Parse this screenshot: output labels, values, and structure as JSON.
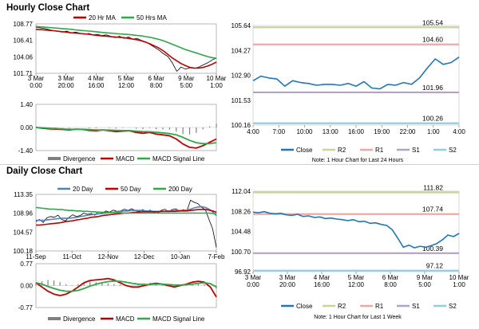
{
  "sections": {
    "hourly": "Hourly Close Chart",
    "daily": "Daily Close Chart"
  },
  "colors": {
    "price": "#000000",
    "ma_short": "#c00000",
    "ma_long": "#2ea84a",
    "ma20_daily": "#4f81bd",
    "close": "#1f78b4",
    "r2": "#c3d69b",
    "r1": "#f2a7a7",
    "s1": "#b3a2c7",
    "s2": "#93cddd",
    "macd": "#c00000",
    "signal": "#2ea84a",
    "divergence": "#7f7f7f"
  },
  "chart_data": [
    {
      "id": "hourly_price",
      "type": "line",
      "legend": [
        "20 Hr MA",
        "50 Hrs MA"
      ],
      "yticks": [
        "108.77",
        "106.41",
        "104.06",
        "101.71"
      ],
      "ylim": [
        101.71,
        108.77
      ],
      "xticks": [
        [
          "3 Mar",
          "0:00"
        ],
        [
          "3 Mar",
          "20:00"
        ],
        [
          "4 Mar",
          "16:00"
        ],
        [
          "5 Mar",
          "12:00"
        ],
        [
          "6 Mar",
          "8:00"
        ],
        [
          "9 Mar",
          "5:00"
        ],
        [
          "10 Mar",
          "1:00"
        ]
      ],
      "series": [
        {
          "name": "Price",
          "color_key": "price",
          "values": [
            108.3,
            108.2,
            108.1,
            107.95,
            107.8,
            107.7,
            107.6,
            107.75,
            107.5,
            107.6,
            107.45,
            107.3,
            107.4,
            107.2,
            107.25,
            107.1,
            107.2,
            107.0,
            106.8,
            107.0,
            106.7,
            106.9,
            106.6,
            106.7,
            106.4,
            106.2,
            105.8,
            105.4,
            105.0,
            104.5,
            104.1,
            103.2,
            102.0,
            102.6,
            102.3,
            102.5,
            102.4,
            102.6,
            102.9,
            103.2,
            103.6,
            103.9
          ]
        },
        {
          "name": "20 Hr MA",
          "color_key": "ma_short",
          "values": [
            108.0,
            107.95,
            107.9,
            107.85,
            107.8,
            107.72,
            107.65,
            107.6,
            107.5,
            107.45,
            107.4,
            107.35,
            107.3,
            107.2,
            107.12,
            107.05,
            107.0,
            106.95,
            106.9,
            106.85,
            106.8,
            106.7,
            106.6,
            106.5,
            106.35,
            106.15,
            105.9,
            105.6,
            105.3,
            104.9,
            104.4,
            103.9,
            103.5,
            103.1,
            102.8,
            102.55,
            102.45,
            102.45,
            102.55,
            102.75,
            103.0,
            103.3
          ]
        },
        {
          "name": "50 Hrs MA",
          "color_key": "ma_long",
          "values": [
            108.4,
            108.35,
            108.3,
            108.25,
            108.2,
            108.15,
            108.1,
            108.05,
            108.0,
            107.92,
            107.85,
            107.8,
            107.75,
            107.7,
            107.62,
            107.55,
            107.5,
            107.45,
            107.4,
            107.35,
            107.3,
            107.25,
            107.2,
            107.12,
            107.05,
            106.95,
            106.85,
            106.7,
            106.55,
            106.35,
            106.1,
            105.85,
            105.6,
            105.35,
            105.1,
            104.9,
            104.7,
            104.5,
            104.3,
            104.1,
            103.95,
            103.85
          ]
        }
      ]
    },
    {
      "id": "hourly_macd",
      "type": "line",
      "yticks": [
        "1.40",
        "0.00",
        "-1.40"
      ],
      "ylim": [
        -1.4,
        1.4
      ],
      "legend": [
        "Divergence",
        "MACD",
        "MACD Signal Line"
      ],
      "series": [
        {
          "name": "MACD",
          "color_key": "macd",
          "values": [
            0.0,
            -0.05,
            -0.08,
            -0.1,
            -0.12,
            -0.15,
            -0.1,
            -0.12,
            -0.18,
            -0.2,
            -0.15,
            -0.2,
            -0.25,
            -0.22,
            -0.2,
            -0.3,
            -0.35,
            -0.3,
            -0.4,
            -0.45,
            -0.5,
            -0.7,
            -1.0,
            -1.2,
            -1.25,
            -1.1,
            -0.9,
            -0.7
          ]
        },
        {
          "name": "MACD Signal Line",
          "color_key": "signal",
          "values": [
            0.0,
            -0.02,
            -0.05,
            -0.07,
            -0.09,
            -0.11,
            -0.11,
            -0.11,
            -0.13,
            -0.15,
            -0.15,
            -0.16,
            -0.18,
            -0.19,
            -0.19,
            -0.22,
            -0.25,
            -0.26,
            -0.29,
            -0.33,
            -0.37,
            -0.45,
            -0.6,
            -0.78,
            -0.92,
            -0.98,
            -0.97,
            -0.92
          ]
        },
        {
          "name": "Divergence",
          "color_key": "divergence",
          "values": [
            0.0,
            -0.03,
            -0.03,
            -0.03,
            -0.03,
            -0.04,
            0.01,
            -0.01,
            -0.05,
            -0.05,
            0.0,
            -0.04,
            -0.07,
            -0.03,
            -0.01,
            -0.08,
            -0.1,
            -0.04,
            -0.11,
            -0.12,
            -0.13,
            -0.25,
            -0.4,
            -0.42,
            -0.33,
            -0.12,
            0.07,
            0.22
          ]
        }
      ]
    },
    {
      "id": "hourly_pivot",
      "type": "line",
      "yticks": [
        "105.64",
        "104.27",
        "102.90",
        "101.53",
        "100.16"
      ],
      "ylim": [
        100.16,
        105.64
      ],
      "xticks": [
        "4:00",
        "7:00",
        "10:00",
        "13:00",
        "16:00",
        "19:00",
        "22:00",
        "1:00",
        "4:00"
      ],
      "levels": [
        {
          "name": "R2",
          "value": 105.54,
          "label": "105.54",
          "color_key": "r2"
        },
        {
          "name": "R1",
          "value": 104.6,
          "label": "104.60",
          "color_key": "r1"
        },
        {
          "name": "S1",
          "value": 101.96,
          "label": "101.96",
          "color_key": "s1"
        },
        {
          "name": "S2",
          "value": 100.26,
          "label": "100.26",
          "color_key": "s2"
        }
      ],
      "series": [
        {
          "name": "Close",
          "color_key": "close",
          "values": [
            102.6,
            102.85,
            102.75,
            102.7,
            102.3,
            102.6,
            102.5,
            102.45,
            102.35,
            102.4,
            102.4,
            102.35,
            102.45,
            102.3,
            102.55,
            102.2,
            102.15,
            102.4,
            102.35,
            102.5,
            102.4,
            102.75,
            103.3,
            103.8,
            103.5,
            103.6,
            103.9
          ]
        }
      ],
      "legend": [
        "Close",
        "R2",
        "R1",
        "S1",
        "S2"
      ],
      "note": "Note: 1 Hour Chart for Last 24 Hours"
    },
    {
      "id": "daily_price",
      "type": "line",
      "legend": [
        "20 Day",
        "50 Day",
        "200 Day"
      ],
      "yticks": [
        "113.35",
        "108.96",
        "104.57",
        "100.18"
      ],
      "ylim": [
        100.18,
        113.35
      ],
      "xticks": [
        "11-Sep",
        "11-Oct",
        "12-Nov",
        "12-Dec",
        "10-Jan",
        "7-Feb"
      ],
      "series": [
        {
          "name": "Price",
          "color_key": "price",
          "values": [
            107.0,
            107.5,
            106.8,
            107.9,
            108.2,
            108.0,
            108.5,
            107.5,
            107.2,
            108.0,
            108.6,
            108.2,
            108.4,
            109.0,
            108.7,
            108.9,
            108.5,
            109.3,
            109.0,
            109.5,
            109.2,
            109.7,
            109.4,
            109.5,
            109.9,
            109.6,
            110.0,
            109.6,
            109.3,
            109.8,
            109.3,
            109.7,
            109.1,
            109.0,
            109.6,
            109.9,
            109.3,
            109.8,
            110.0,
            109.4,
            109.8,
            109.5,
            112.0,
            111.5,
            111.2,
            110.3,
            109.8,
            107.5,
            105.3,
            101.0
          ]
        },
        {
          "name": "20 Day",
          "color_key": "ma20_daily",
          "values": [
            107.3,
            107.3,
            107.3,
            107.4,
            107.5,
            107.6,
            107.7,
            107.8,
            107.8,
            107.8,
            107.9,
            108.0,
            108.2,
            108.3,
            108.5,
            108.6,
            108.7,
            108.8,
            108.9,
            109.0,
            109.1,
            109.2,
            109.3,
            109.4,
            109.5,
            109.5,
            109.6,
            109.6,
            109.6,
            109.6,
            109.5,
            109.5,
            109.4,
            109.4,
            109.4,
            109.4,
            109.5,
            109.5,
            109.6,
            109.6,
            109.6,
            109.7,
            109.9,
            110.2,
            110.4,
            110.5,
            110.3,
            109.9,
            109.3,
            108.4
          ]
        },
        {
          "name": "50 Day",
          "color_key": "ma_short",
          "values": [
            106.2,
            106.2,
            106.3,
            106.4,
            106.5,
            106.6,
            106.7,
            106.8,
            107.0,
            107.1,
            107.2,
            107.4,
            107.5,
            107.7,
            107.8,
            108.0,
            108.1,
            108.2,
            108.4,
            108.5,
            108.6,
            108.7,
            108.8,
            108.9,
            109.0,
            109.0,
            109.1,
            109.2,
            109.2,
            109.3,
            109.3,
            109.3,
            109.3,
            109.3,
            109.4,
            109.4,
            109.4,
            109.4,
            109.4,
            109.5,
            109.5,
            109.5,
            109.6,
            109.7,
            109.8,
            109.8,
            109.8,
            109.7,
            109.5,
            109.2
          ]
        },
        {
          "name": "200 Day",
          "color_key": "ma_long",
          "values": [
            110.3,
            110.2,
            110.1,
            110.0,
            109.9,
            109.9,
            109.8,
            109.8,
            109.7,
            109.6,
            109.6,
            109.5,
            109.5,
            109.4,
            109.4,
            109.3,
            109.3,
            109.2,
            109.2,
            109.2,
            109.1,
            109.1,
            109.1,
            109.1,
            109.0,
            109.0,
            109.0,
            109.0,
            109.0,
            109.0,
            109.0,
            109.0,
            109.0,
            109.0,
            109.0,
            109.0,
            109.0,
            109.0,
            109.0,
            109.0,
            109.0,
            109.0,
            109.0,
            109.0,
            109.0,
            109.0,
            109.0,
            109.0,
            108.9,
            108.9
          ]
        }
      ]
    },
    {
      "id": "daily_macd",
      "type": "line",
      "yticks": [
        "0.77",
        "0.00",
        "-0.77"
      ],
      "ylim": [
        -0.77,
        0.77
      ],
      "legend": [
        "Divergence",
        "MACD",
        "MACD Signal Line"
      ],
      "series": [
        {
          "name": "MACD",
          "color_key": "macd",
          "values": [
            0.1,
            -0.05,
            -0.2,
            -0.3,
            -0.35,
            -0.3,
            -0.2,
            -0.05,
            0.1,
            0.18,
            0.2,
            0.22,
            0.25,
            0.2,
            0.1,
            0.0,
            -0.05,
            -0.05,
            0.0,
            0.05,
            0.08,
            0.05,
            0.0,
            -0.05,
            0.0,
            0.05,
            0.12,
            0.15,
            0.12,
            -0.05,
            -0.4
          ]
        },
        {
          "name": "MACD Signal Line",
          "color_key": "signal",
          "values": [
            0.1,
            0.05,
            -0.03,
            -0.1,
            -0.16,
            -0.2,
            -0.2,
            -0.17,
            -0.1,
            -0.02,
            0.05,
            0.1,
            0.14,
            0.16,
            0.15,
            0.12,
            0.08,
            0.05,
            0.04,
            0.04,
            0.05,
            0.05,
            0.04,
            0.02,
            0.02,
            0.03,
            0.05,
            0.08,
            0.1,
            0.07,
            -0.05
          ]
        },
        {
          "name": "Divergence",
          "color_key": "divergence",
          "values": [
            0.08,
            0.15,
            0.2,
            0.18,
            0.12,
            0.05,
            0.02,
            0.05,
            0.1,
            0.14,
            0.12,
            0.1,
            0.08,
            0.06,
            0.04,
            0.03,
            0.02,
            0.05,
            0.08,
            0.1,
            0.08,
            0.06,
            0.04,
            0.02,
            0.03,
            0.05,
            0.08,
            0.1,
            0.06,
            0.0,
            -0.1
          ]
        }
      ]
    },
    {
      "id": "daily_pivot",
      "type": "line",
      "yticks": [
        "112.04",
        "108.26",
        "104.48",
        "100.70",
        "96.92"
      ],
      "ylim": [
        96.92,
        112.04
      ],
      "xticks": [
        [
          "3 Mar",
          "0:00"
        ],
        [
          "3 Mar",
          "20:00"
        ],
        [
          "4 Mar",
          "16:00"
        ],
        [
          "5 Mar",
          "12:00"
        ],
        [
          "6 Mar",
          "8:00"
        ],
        [
          "9 Mar",
          "5:00"
        ],
        [
          "10 Mar",
          "1:00"
        ]
      ],
      "levels": [
        {
          "name": "R2",
          "value": 111.82,
          "label": "111.82",
          "color_key": "r2"
        },
        {
          "name": "R1",
          "value": 107.74,
          "label": "107.74",
          "color_key": "r1"
        },
        {
          "name": "S1",
          "value": 100.39,
          "label": "100.39",
          "color_key": "s1"
        },
        {
          "name": "S2",
          "value": 97.12,
          "label": "97.12",
          "color_key": "s2"
        }
      ],
      "series": [
        {
          "name": "Close",
          "color_key": "close",
          "values": [
            108.1,
            108.0,
            108.2,
            107.9,
            107.8,
            107.9,
            107.6,
            107.5,
            107.7,
            107.3,
            107.4,
            107.1,
            107.2,
            106.9,
            107.0,
            106.8,
            106.7,
            106.5,
            106.7,
            106.3,
            106.4,
            106.0,
            106.1,
            105.8,
            105.6,
            104.8,
            103.2,
            101.5,
            101.9,
            101.4,
            101.7,
            101.5,
            101.8,
            102.2,
            102.9,
            103.8,
            103.5,
            104.1
          ]
        }
      ],
      "legend": [
        "Close",
        "R2",
        "R1",
        "S1",
        "S2"
      ],
      "note": "Note: 1 Hour Chart for Last 1 Week"
    }
  ]
}
